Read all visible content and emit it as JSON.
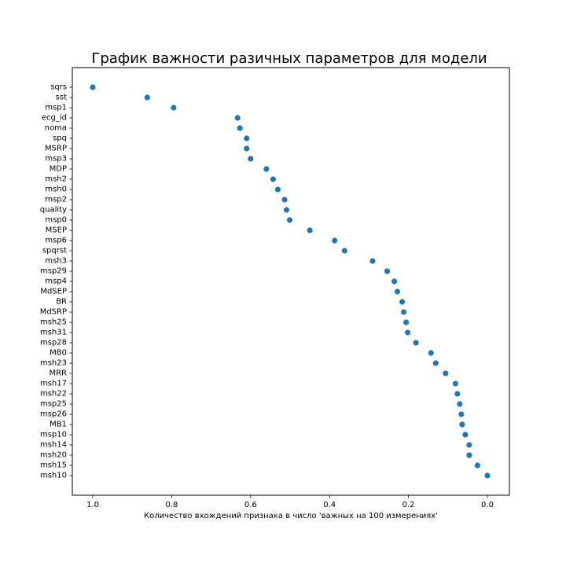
{
  "chart_data": {
    "type": "scatter",
    "title": "График важности разичных параметров для модели",
    "xlabel": "Количество вхождений признака в число 'важных на 100 измерениях'",
    "ylabel": "",
    "xlim": [
      1.0,
      0.0
    ],
    "x_inverted": true,
    "x_ticks": [
      1.0,
      0.8,
      0.6,
      0.4,
      0.2,
      0.0
    ],
    "x_tick_labels": [
      "1.0",
      "0.8",
      "0.6",
      "0.4",
      "0.2",
      "0.0"
    ],
    "grid": false,
    "marker_color": "#1f77b4",
    "categories": [
      "sqrs",
      "sst",
      "msp1",
      "ecg_id",
      "noma",
      "spq",
      "MSRP",
      "msp3",
      "MDP",
      "msh2",
      "msh0",
      "msp2",
      "quality",
      "msp0",
      "MSEP",
      "msp6",
      "spqrst",
      "msh3",
      "msp29",
      "msp4",
      "MdSEP",
      "BR",
      "MdSRP",
      "msh25",
      "msh31",
      "msp28",
      "MB0",
      "msh23",
      "MRR",
      "msh17",
      "msh22",
      "msp25",
      "msp26",
      "MB1",
      "msp10",
      "msh14",
      "msh20",
      "msh15",
      "msh10"
    ],
    "values": [
      1.0,
      0.862,
      0.795,
      0.633,
      0.627,
      0.61,
      0.61,
      0.6,
      0.56,
      0.543,
      0.531,
      0.514,
      0.509,
      0.501,
      0.45,
      0.387,
      0.362,
      0.291,
      0.254,
      0.236,
      0.228,
      0.216,
      0.212,
      0.206,
      0.202,
      0.181,
      0.143,
      0.131,
      0.106,
      0.081,
      0.076,
      0.07,
      0.066,
      0.064,
      0.056,
      0.046,
      0.046,
      0.025,
      0.0
    ]
  }
}
